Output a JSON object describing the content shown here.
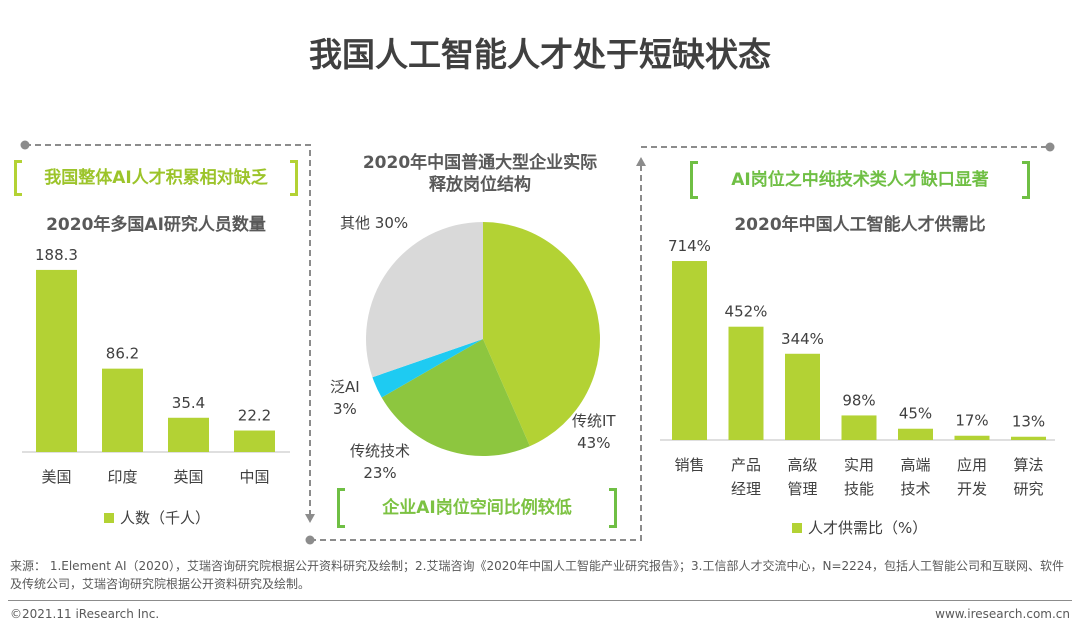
{
  "title": "我国人工智能人才处于短缺状态",
  "colors": {
    "bar": "#b3d234",
    "it": "#b3d234",
    "tech": "#8dc63f",
    "ai": "#1ecbf2",
    "other": "#d9d9d9",
    "bracket_left": "#b3d234",
    "bracket_green": "#6fbf44",
    "dash": "#8c8c8c"
  },
  "panels": {
    "left": {
      "highlight": "我国整体AI人才积累相对缺乏"
    },
    "middle": {
      "highlight": "企业AI岗位空间比例较低"
    },
    "right": {
      "highlight": "AI岗位之中纯技术类人才缺口显著"
    }
  },
  "chart_data": [
    {
      "type": "bar",
      "title": "2020年多国AI研究人员数量",
      "categories": [
        "美国",
        "印度",
        "英国",
        "中国"
      ],
      "values": [
        188.3,
        86.2,
        35.4,
        22.2
      ],
      "value_labels": [
        "188.3",
        "86.2",
        "35.4",
        "22.2"
      ],
      "legend": "人数（千人）",
      "ylim": [
        0,
        200
      ],
      "grid": false
    },
    {
      "type": "pie",
      "title": "2020年中国普通大型企业实际释放岗位结构",
      "title_lines": [
        "2020年中国普通大型企业实际",
        "释放岗位结构"
      ],
      "slices": [
        {
          "name": "传统IT",
          "value": 43,
          "label": "43%"
        },
        {
          "name": "传统技术",
          "value": 23,
          "label": "23%"
        },
        {
          "name": "泛AI",
          "value": 3,
          "label": "3%"
        },
        {
          "name": "其他",
          "value": 30,
          "label": "30%"
        }
      ]
    },
    {
      "type": "bar",
      "title": "2020年中国人工智能人才供需比",
      "categories": [
        [
          "销售"
        ],
        [
          "产品",
          "经理"
        ],
        [
          "高级",
          "管理"
        ],
        [
          "实用",
          "技能"
        ],
        [
          "高端",
          "技术"
        ],
        [
          "应用",
          "开发"
        ],
        [
          "算法",
          "研究"
        ]
      ],
      "values": [
        714,
        452,
        344,
        98,
        45,
        17,
        13
      ],
      "value_labels": [
        "714%",
        "452%",
        "344%",
        "98%",
        "45%",
        "17%",
        "13%"
      ],
      "legend": "人才供需比（%）",
      "ylim": [
        0,
        750
      ],
      "grid": false
    }
  ],
  "source": "来源：  1.Element AI（2020），艾瑞咨询研究院根据公开资料研究及绘制；2.艾瑞咨询《2020年中国人工智能产业研究报告》；3.工信部人才交流中心，N=2224，包括人工智能公司和互联网、软件及传统公司，艾瑞咨询研究院根据公开资料研究及绘制。",
  "footer": {
    "copyright": "©2021.11 iResearch Inc.",
    "website": "www.iresearch.com.cn"
  }
}
